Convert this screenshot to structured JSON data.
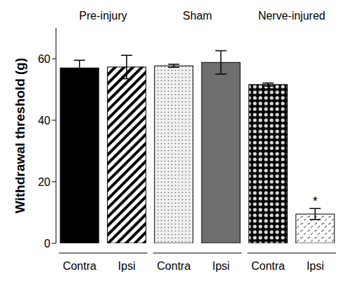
{
  "chart_data": {
    "type": "bar",
    "y_label": "Withdrawal threshold (g)",
    "groups": [
      "Pre-injury",
      "Sham",
      "Nerve-injured"
    ],
    "categories": [
      "Contra",
      "Ipsi",
      "Contra",
      "Ipsi",
      "Contra",
      "Ipsi"
    ],
    "values": [
      57,
      57.3,
      57.7,
      58.8,
      51.6,
      9.5
    ],
    "errors": [
      2.5,
      3.8,
      0.5,
      3.8,
      0.5,
      1.8
    ],
    "colors": [
      "#000000",
      "#000000",
      "#555555",
      "#6e6e6e",
      "#000000",
      "#333333"
    ],
    "ylim": [
      0,
      70
    ],
    "yticks": [
      0,
      20,
      40,
      60
    ],
    "annotations": [
      {
        "category_index": 5,
        "text": "*"
      }
    ]
  }
}
